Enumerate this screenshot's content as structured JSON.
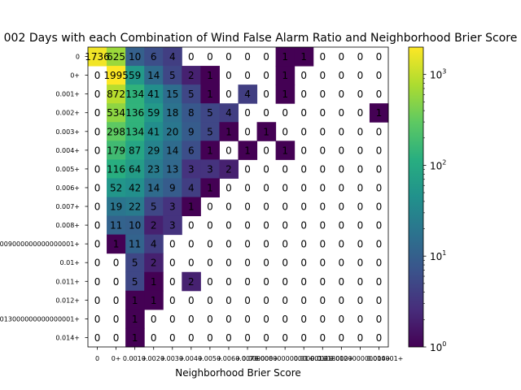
{
  "chart_data": {
    "type": "heatmap",
    "title": "002 Days with each Combination of Wind False Alarm Ratio and Neighborhood Brier Score",
    "xlabel": "Neighborhood Brier Score",
    "ylabel": "",
    "x_tick_labels": [
      "0",
      "0+",
      "0.001+",
      "0.002+",
      "0.003+",
      "0.004+",
      "0.005+",
      "0.006+",
      "0.007+",
      "0.008+",
      "0.009000000000000001+",
      "0.01+",
      "0.011+",
      "0.012+",
      "0.013000000000000001+",
      "0.014+"
    ],
    "y_tick_labels": [
      "0",
      "0+",
      "0.001+",
      "0.002+",
      "0.003+",
      "0.004+",
      "0.005+",
      "0.006+",
      "0.007+",
      "0.008+",
      "0.009000000000000001+",
      "0.01+",
      "0.011+",
      "0.012+",
      "0.013000000000000001+",
      "0.014+"
    ],
    "values": [
      [
        1736,
        625,
        10,
        6,
        4,
        0,
        0,
        0,
        0,
        0,
        1,
        1,
        0,
        0,
        0,
        0
      ],
      [
        0,
        1995,
        59,
        14,
        5,
        2,
        1,
        0,
        0,
        0,
        1,
        0,
        0,
        0,
        0,
        0
      ],
      [
        0,
        872,
        134,
        41,
        15,
        5,
        1,
        0,
        4,
        0,
        1,
        0,
        0,
        0,
        0,
        0
      ],
      [
        0,
        534,
        136,
        59,
        18,
        8,
        5,
        4,
        0,
        0,
        0,
        0,
        0,
        0,
        0,
        1
      ],
      [
        0,
        298,
        134,
        41,
        20,
        9,
        5,
        1,
        0,
        1,
        0,
        0,
        0,
        0,
        0,
        0
      ],
      [
        0,
        179,
        87,
        29,
        14,
        6,
        1,
        0,
        1,
        0,
        1,
        0,
        0,
        0,
        0,
        0
      ],
      [
        0,
        116,
        64,
        23,
        13,
        3,
        3,
        2,
        0,
        0,
        0,
        0,
        0,
        0,
        0,
        0
      ],
      [
        0,
        52,
        42,
        14,
        9,
        4,
        1,
        0,
        0,
        0,
        0,
        0,
        0,
        0,
        0,
        0
      ],
      [
        0,
        19,
        22,
        5,
        3,
        1,
        0,
        0,
        0,
        0,
        0,
        0,
        0,
        0,
        0,
        0
      ],
      [
        0,
        11,
        10,
        2,
        3,
        0,
        0,
        0,
        0,
        0,
        0,
        0,
        0,
        0,
        0,
        0
      ],
      [
        0,
        1,
        11,
        4,
        0,
        0,
        0,
        0,
        0,
        0,
        0,
        0,
        0,
        0,
        0,
        0
      ],
      [
        0,
        0,
        5,
        2,
        0,
        0,
        0,
        0,
        0,
        0,
        0,
        0,
        0,
        0,
        0,
        0
      ],
      [
        0,
        0,
        5,
        1,
        0,
        2,
        0,
        0,
        0,
        0,
        0,
        0,
        0,
        0,
        0,
        0
      ],
      [
        0,
        0,
        1,
        1,
        0,
        0,
        0,
        0,
        0,
        0,
        0,
        0,
        0,
        0,
        0,
        0
      ],
      [
        0,
        0,
        1,
        0,
        0,
        0,
        0,
        0,
        0,
        0,
        0,
        0,
        0,
        0,
        0,
        0
      ],
      [
        0,
        0,
        1,
        0,
        0,
        0,
        0,
        0,
        0,
        0,
        0,
        0,
        0,
        0,
        0,
        0
      ]
    ],
    "color_scale": "log",
    "colormap": "viridis",
    "colorbar_range": [
      1,
      2000
    ],
    "colorbar_tick_labels": [
      "10^0",
      "10^1",
      "10^2",
      "10^3"
    ],
    "grid": false,
    "legend": "colorbar-right"
  }
}
